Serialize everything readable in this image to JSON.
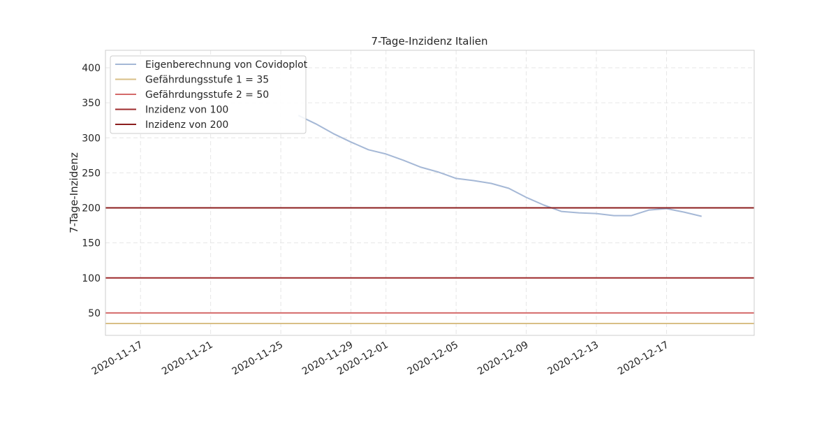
{
  "chart_data": {
    "type": "line",
    "title": "7-Tage-Inzidenz Italien",
    "xlabel": "",
    "ylabel": "7-Tage-Inzidenz",
    "x_axis_type": "date",
    "xlim": [
      "2020-11-15",
      "2020-12-22"
    ],
    "ylim": [
      18,
      425
    ],
    "yticks": [
      50,
      100,
      150,
      200,
      250,
      300,
      350,
      400
    ],
    "xticks": [
      "2020-11-17",
      "2020-11-21",
      "2020-11-25",
      "2020-11-29",
      "2020-12-01",
      "2020-12-05",
      "2020-12-09",
      "2020-12-13",
      "2020-12-17"
    ],
    "grid": true,
    "legend_position": "top-left",
    "series": [
      {
        "name": "Eigenberechnung von Covidoplot",
        "kind": "line",
        "color": "#a5b8d6",
        "x": [
          "2020-11-26",
          "2020-11-27",
          "2020-11-28",
          "2020-11-29",
          "2020-11-30",
          "2020-12-01",
          "2020-12-02",
          "2020-12-03",
          "2020-12-04",
          "2020-12-05",
          "2020-12-06",
          "2020-12-07",
          "2020-12-08",
          "2020-12-09",
          "2020-12-10",
          "2020-12-11",
          "2020-12-12",
          "2020-12-13",
          "2020-12-14",
          "2020-12-15",
          "2020-12-16",
          "2020-12-17",
          "2020-12-18",
          "2020-12-19"
        ],
        "y": [
          332,
          320,
          306,
          294,
          283,
          277,
          268,
          258,
          251,
          242,
          239,
          235,
          228,
          215,
          204,
          195,
          193,
          192,
          189,
          189,
          197,
          199,
          194,
          188
        ]
      },
      {
        "name": "Gefährdungsstufe 1 = 35",
        "kind": "hline",
        "value": 35,
        "color": "#d8bf86"
      },
      {
        "name": "Gefährdungsstufe 2 = 50",
        "kind": "hline",
        "value": 50,
        "color": "#d46a6a"
      },
      {
        "name": "Inzidenz von 100",
        "kind": "hline",
        "value": 100,
        "color": "#9e2a2b"
      },
      {
        "name": "Inzidenz von 200",
        "kind": "hline",
        "value": 200,
        "color": "#8b1e1e"
      }
    ]
  }
}
